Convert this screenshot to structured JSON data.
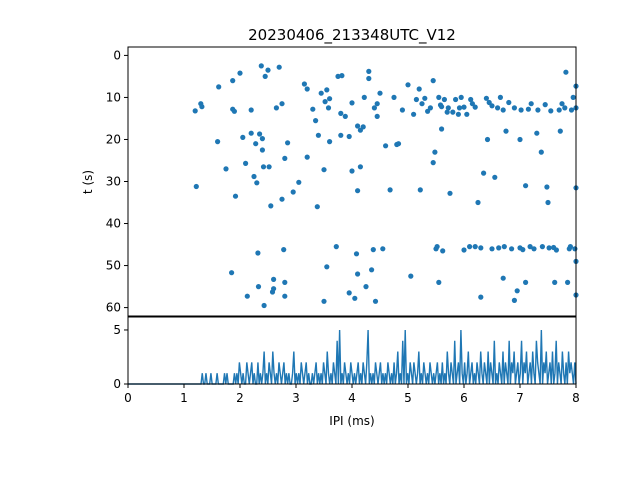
{
  "title": "20230406_213348UTC_V12",
  "colors": {
    "series": "#1f77b4",
    "axes": "#000000",
    "background": "#ffffff"
  },
  "chart_data": [
    {
      "type": "scatter",
      "title": "20230406_213348UTC_V12",
      "xlabel": "",
      "ylabel": "t (s)",
      "xlim": [
        0,
        8
      ],
      "ylim": [
        62,
        -2
      ],
      "y_inverted": true,
      "yticks": [
        0,
        10,
        20,
        30,
        40,
        50,
        60
      ],
      "points": [
        [
          1.2,
          13.2
        ],
        [
          1.3,
          11.5
        ],
        [
          1.32,
          12.2
        ],
        [
          1.22,
          31.2
        ],
        [
          1.6,
          20.5
        ],
        [
          1.62,
          7.5
        ],
        [
          1.75,
          27
        ],
        [
          1.87,
          6
        ],
        [
          1.87,
          12.8
        ],
        [
          1.9,
          13.3
        ],
        [
          1.92,
          33.5
        ],
        [
          1.85,
          51.7
        ],
        [
          2.0,
          4.2
        ],
        [
          2.05,
          19.5
        ],
        [
          2.1,
          25.7
        ],
        [
          2.13,
          57.3
        ],
        [
          2.2,
          13
        ],
        [
          2.2,
          18.5
        ],
        [
          2.25,
          28.8
        ],
        [
          2.28,
          21
        ],
        [
          2.3,
          30.3
        ],
        [
          2.32,
          47
        ],
        [
          2.33,
          55
        ],
        [
          2.35,
          18.7
        ],
        [
          2.38,
          2.5
        ],
        [
          2.4,
          19.8
        ],
        [
          2.4,
          22.5
        ],
        [
          2.42,
          26.5
        ],
        [
          2.45,
          5
        ],
        [
          2.43,
          59.5
        ],
        [
          2.5,
          3.5
        ],
        [
          2.52,
          26.5
        ],
        [
          2.55,
          35.8
        ],
        [
          2.6,
          53.3
        ],
        [
          2.58,
          56.3
        ],
        [
          2.6,
          55.5
        ],
        [
          2.65,
          12.5
        ],
        [
          2.7,
          2.8
        ],
        [
          2.75,
          11.5
        ],
        [
          2.75,
          34.2
        ],
        [
          2.78,
          46.2
        ],
        [
          2.8,
          24.5
        ],
        [
          2.8,
          54
        ],
        [
          2.8,
          57.3
        ],
        [
          2.85,
          20.8
        ],
        [
          2.95,
          32.5
        ],
        [
          3.05,
          30.2
        ],
        [
          3.15,
          6.8
        ],
        [
          3.2,
          24.2
        ],
        [
          3.2,
          8
        ],
        [
          3.3,
          12.8
        ],
        [
          3.35,
          15.5
        ],
        [
          3.38,
          36
        ],
        [
          3.4,
          19
        ],
        [
          3.45,
          9
        ],
        [
          3.5,
          58.5
        ],
        [
          3.5,
          27.2
        ],
        [
          3.52,
          11
        ],
        [
          3.55,
          8.2
        ],
        [
          3.55,
          50.3
        ],
        [
          3.58,
          12.5
        ],
        [
          3.6,
          10.3
        ],
        [
          3.6,
          20.5
        ],
        [
          3.72,
          45.5
        ],
        [
          3.75,
          5
        ],
        [
          3.8,
          13.8
        ],
        [
          3.8,
          19
        ],
        [
          3.82,
          4.8
        ],
        [
          3.88,
          14.5
        ],
        [
          3.95,
          19.3
        ],
        [
          3.95,
          56.5
        ],
        [
          4.0,
          27.5
        ],
        [
          4.0,
          11.3
        ],
        [
          4.05,
          57.8
        ],
        [
          4.08,
          47.2
        ],
        [
          4.1,
          16.8
        ],
        [
          4.1,
          32.2
        ],
        [
          4.1,
          52
        ],
        [
          4.15,
          17.8
        ],
        [
          4.15,
          26.5
        ],
        [
          4.2,
          17
        ],
        [
          4.22,
          10
        ],
        [
          4.25,
          55
        ],
        [
          4.3,
          5.5
        ],
        [
          4.3,
          3.8
        ],
        [
          4.35,
          51
        ],
        [
          4.38,
          46.2
        ],
        [
          4.4,
          12.5
        ],
        [
          4.42,
          58.5
        ],
        [
          4.45,
          14.5
        ],
        [
          4.45,
          11.5
        ],
        [
          4.5,
          9
        ],
        [
          4.55,
          46
        ],
        [
          4.6,
          21.5
        ],
        [
          4.68,
          32
        ],
        [
          4.75,
          10
        ],
        [
          4.8,
          21.2
        ],
        [
          4.83,
          21
        ],
        [
          4.9,
          13
        ],
        [
          5.0,
          7
        ],
        [
          5.05,
          52.5
        ],
        [
          5.1,
          14
        ],
        [
          5.15,
          10.5
        ],
        [
          5.2,
          8
        ],
        [
          5.22,
          32
        ],
        [
          5.25,
          11.5
        ],
        [
          5.3,
          10.2
        ],
        [
          5.35,
          13.3
        ],
        [
          5.4,
          12.5
        ],
        [
          5.45,
          6
        ],
        [
          5.45,
          25.5
        ],
        [
          5.48,
          23
        ],
        [
          5.5,
          46
        ],
        [
          5.52,
          45.5
        ],
        [
          5.55,
          54
        ],
        [
          5.55,
          10
        ],
        [
          5.58,
          11.8
        ],
        [
          5.6,
          12.2
        ],
        [
          5.6,
          17.5
        ],
        [
          5.62,
          46.5
        ],
        [
          5.65,
          10.5
        ],
        [
          5.7,
          13.5
        ],
        [
          5.72,
          12.5
        ],
        [
          5.75,
          32.8
        ],
        [
          5.8,
          13.5
        ],
        [
          5.85,
          10.5
        ],
        [
          5.9,
          14
        ],
        [
          5.92,
          12.5
        ],
        [
          5.95,
          10
        ],
        [
          6.0,
          46.3
        ],
        [
          6.0,
          12.3
        ],
        [
          6.05,
          14
        ],
        [
          6.1,
          45.5
        ],
        [
          6.12,
          10.5
        ],
        [
          6.15,
          11.5
        ],
        [
          6.2,
          12.3
        ],
        [
          6.2,
          45.5
        ],
        [
          6.25,
          35
        ],
        [
          6.3,
          45.8
        ],
        [
          6.3,
          57.5
        ],
        [
          6.35,
          28
        ],
        [
          6.4,
          10.2
        ],
        [
          6.42,
          20
        ],
        [
          6.45,
          11.2
        ],
        [
          6.5,
          12
        ],
        [
          6.5,
          46
        ],
        [
          6.55,
          29
        ],
        [
          6.6,
          12.5
        ],
        [
          6.62,
          45.8
        ],
        [
          6.65,
          10
        ],
        [
          6.7,
          13
        ],
        [
          6.7,
          53
        ],
        [
          6.72,
          45.5
        ],
        [
          6.75,
          18
        ],
        [
          6.8,
          11.2
        ],
        [
          6.85,
          46
        ],
        [
          6.9,
          12.5
        ],
        [
          6.9,
          58.3
        ],
        [
          6.95,
          56
        ],
        [
          7.0,
          45.8
        ],
        [
          7.0,
          20
        ],
        [
          7.02,
          13
        ],
        [
          7.05,
          46.2
        ],
        [
          7.1,
          31
        ],
        [
          7.1,
          54
        ],
        [
          7.15,
          12.8
        ],
        [
          7.18,
          45.5
        ],
        [
          7.2,
          11.5
        ],
        [
          7.25,
          46
        ],
        [
          7.3,
          18.5
        ],
        [
          7.32,
          13
        ],
        [
          7.38,
          23
        ],
        [
          7.4,
          45.5
        ],
        [
          7.45,
          11.7
        ],
        [
          7.48,
          31.3
        ],
        [
          7.5,
          35
        ],
        [
          7.52,
          45.8
        ],
        [
          7.55,
          13.2
        ],
        [
          7.6,
          45.7
        ],
        [
          7.62,
          54
        ],
        [
          7.65,
          46.3
        ],
        [
          7.7,
          13
        ],
        [
          7.72,
          18
        ],
        [
          7.75,
          11.5
        ],
        [
          7.8,
          12.5
        ],
        [
          7.82,
          4
        ],
        [
          7.85,
          54
        ],
        [
          7.88,
          46
        ],
        [
          7.9,
          45.5
        ],
        [
          7.92,
          13
        ],
        [
          7.95,
          10
        ],
        [
          7.98,
          46
        ],
        [
          8.0,
          12.5
        ],
        [
          8.0,
          31.5
        ],
        [
          8.0,
          7.3
        ],
        [
          8.0,
          57
        ],
        [
          8.0,
          49
        ]
      ],
      "marker": "circle"
    },
    {
      "type": "line",
      "xlabel": "IPI (ms)",
      "ylabel": "",
      "xlim": [
        0,
        8
      ],
      "ylim": [
        0,
        6.2
      ],
      "xticks": [
        0,
        1,
        2,
        3,
        4,
        5,
        6,
        7,
        8
      ],
      "yticks": [
        0,
        5
      ],
      "series": [
        {
          "values": [
            0,
            0,
            0,
            0,
            0,
            0,
            0,
            0,
            0,
            0,
            0,
            0,
            0,
            0,
            0,
            0,
            0,
            0,
            0,
            0,
            0,
            0,
            0,
            0,
            0,
            0,
            0,
            0,
            0,
            0,
            0,
            0,
            0,
            0,
            0,
            0,
            0,
            0,
            0,
            0,
            0,
            0,
            0,
            0,
            0,
            0,
            0,
            0,
            0,
            0,
            0,
            0,
            0,
            0,
            0,
            0,
            0,
            0,
            0,
            0,
            1,
            0,
            0,
            1,
            0,
            0,
            0,
            1,
            0,
            0,
            0,
            0,
            1,
            0,
            0,
            0,
            0,
            0,
            1,
            0,
            1,
            0,
            0,
            0,
            0,
            0,
            1,
            0,
            1,
            0,
            2,
            1,
            0,
            1,
            0,
            0,
            2,
            1,
            0,
            1,
            2,
            0,
            1,
            0,
            0,
            2,
            0,
            1,
            0,
            1,
            3,
            0,
            1,
            0,
            2,
            1,
            0,
            3,
            1,
            0,
            1,
            0,
            2,
            1,
            0,
            1,
            2,
            0,
            1,
            0,
            1,
            0,
            0,
            1,
            3,
            0,
            1,
            0,
            1,
            0,
            2,
            1,
            0,
            1,
            2,
            0,
            1,
            0,
            0,
            1,
            0,
            1,
            2,
            0,
            1,
            0,
            1,
            0,
            2,
            1,
            0,
            3,
            1,
            0,
            1,
            0,
            2,
            1,
            0,
            4,
            0,
            5,
            0,
            1,
            0,
            2,
            1,
            0,
            1,
            0,
            2,
            1,
            0,
            1,
            0,
            1,
            2,
            0,
            1,
            0,
            2,
            1,
            0,
            2,
            5,
            0,
            1,
            0,
            1,
            0,
            2,
            1,
            0,
            1,
            2,
            0,
            1,
            0,
            1,
            0,
            2,
            1,
            0,
            1,
            0,
            2,
            0,
            1,
            3,
            0,
            1,
            0,
            4,
            0,
            5,
            0,
            1,
            0,
            2,
            1,
            0,
            2,
            1,
            0,
            1,
            3,
            0,
            1,
            0,
            2,
            1,
            0,
            1,
            0,
            2,
            1,
            0,
            1,
            0,
            1,
            2,
            0,
            1,
            0,
            2,
            0,
            1,
            0,
            3,
            1,
            0,
            2,
            1,
            0,
            4,
            0,
            1,
            2,
            0,
            5,
            1,
            0,
            2,
            0,
            1,
            3,
            0,
            1,
            2,
            0,
            1,
            0,
            2,
            1,
            0,
            3,
            1,
            0,
            2,
            1,
            0,
            3,
            0,
            2,
            1,
            0,
            4,
            0,
            1,
            0,
            2,
            1,
            0,
            3,
            0,
            2,
            1,
            0,
            4,
            0,
            2,
            1,
            3,
            0,
            1,
            2,
            0,
            1,
            4,
            0,
            2,
            1,
            3,
            0,
            1,
            2,
            0,
            3,
            1,
            0,
            4,
            2,
            1,
            0,
            5,
            0,
            2,
            1,
            3,
            0,
            1,
            2,
            0,
            3,
            0,
            1,
            4,
            0,
            2,
            1,
            0,
            3,
            1,
            0,
            2,
            0,
            3,
            1,
            2,
            1,
            0,
            2,
            0
          ]
        }
      ]
    }
  ]
}
